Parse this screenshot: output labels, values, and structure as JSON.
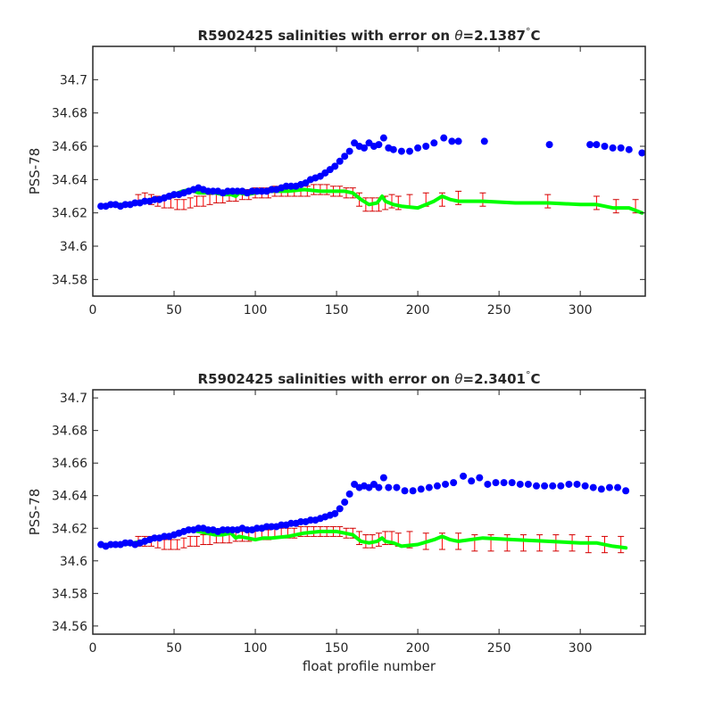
{
  "chart_data": [
    {
      "type": "scatter",
      "title": "R5902425 salinities with error on θ=2.1387°C",
      "title_parts": {
        "prefix": "R5902425 salinities with error on ",
        "symbol": "θ",
        "suffix": "=2.1387",
        "unit": "C"
      },
      "xlabel": "",
      "ylabel": "PSS-78",
      "xlim": [
        0,
        340
      ],
      "ylim": [
        34.57,
        34.72
      ],
      "xticks": [
        0,
        50,
        100,
        150,
        200,
        250,
        300
      ],
      "yticks": [
        34.58,
        34.6,
        34.62,
        34.64,
        34.66,
        34.68,
        34.7
      ],
      "ytick_labels": [
        "34.58",
        "34.6",
        "34.62",
        "34.64",
        "34.66",
        "34.68",
        "34.7"
      ],
      "grid": false,
      "colors": {
        "float": "#0000ff",
        "mapped": "#00ff00",
        "error": "#ff0000",
        "error_cap": "#cc0000"
      },
      "series": [
        {
          "style": "blue-dots",
          "x": [
            5,
            8,
            11,
            14,
            17,
            20,
            23,
            26,
            29,
            32,
            35,
            38,
            41,
            44,
            47,
            50,
            53,
            56,
            59,
            62,
            65,
            68,
            71,
            74,
            77,
            80,
            83,
            86,
            89,
            92,
            95,
            98,
            101,
            104,
            107,
            110,
            113,
            116,
            119,
            122,
            125,
            128,
            131,
            134,
            137,
            140,
            143,
            146,
            149,
            152,
            155,
            158,
            161,
            164,
            167,
            170,
            173,
            176,
            179,
            182,
            185,
            190,
            195,
            200,
            205,
            210,
            216,
            221,
            225,
            241,
            281,
            306,
            310,
            315,
            320,
            325,
            330,
            338
          ],
          "y": [
            34.624,
            34.624,
            34.625,
            34.625,
            34.624,
            34.625,
            34.625,
            34.626,
            34.626,
            34.627,
            34.627,
            34.628,
            34.628,
            34.629,
            34.63,
            34.631,
            34.631,
            34.632,
            34.633,
            34.634,
            34.635,
            34.634,
            34.633,
            34.633,
            34.633,
            34.632,
            34.633,
            34.633,
            34.633,
            34.633,
            34.632,
            34.633,
            34.633,
            34.633,
            34.633,
            34.634,
            34.634,
            34.635,
            34.636,
            34.636,
            34.636,
            34.637,
            34.638,
            34.64,
            34.641,
            34.642,
            34.644,
            34.646,
            34.648,
            34.651,
            34.654,
            34.657,
            34.662,
            34.66,
            34.659,
            34.662,
            34.66,
            34.661,
            34.665,
            34.659,
            34.658,
            34.657,
            34.657,
            34.659,
            34.66,
            34.662,
            34.665,
            34.663,
            34.663,
            34.663,
            34.661,
            34.661,
            34.661,
            34.66,
            34.659,
            34.659,
            34.658,
            34.656
          ]
        },
        {
          "style": "green-line",
          "x": [
            5,
            10,
            20,
            30,
            40,
            50,
            55,
            60,
            65,
            70,
            75,
            80,
            85,
            88,
            90,
            95,
            100,
            110,
            120,
            130,
            140,
            150,
            155,
            160,
            165,
            170,
            175,
            178,
            180,
            185,
            190,
            200,
            210,
            215,
            220,
            225,
            240,
            260,
            280,
            300,
            310,
            320,
            330,
            338
          ],
          "y": [
            34.624,
            34.625,
            34.625,
            34.627,
            34.628,
            34.631,
            34.633,
            34.634,
            34.632,
            34.632,
            34.632,
            34.631,
            34.631,
            34.63,
            34.632,
            34.631,
            34.632,
            34.633,
            34.633,
            34.634,
            34.633,
            34.633,
            34.633,
            34.632,
            34.628,
            34.625,
            34.626,
            34.63,
            34.627,
            34.625,
            34.624,
            34.623,
            34.627,
            34.63,
            34.628,
            34.627,
            34.627,
            34.626,
            34.626,
            34.625,
            34.625,
            34.623,
            34.623,
            34.62
          ]
        },
        {
          "style": "red-errorbars",
          "x": [
            28,
            32,
            36,
            40,
            44,
            48,
            52,
            56,
            60,
            64,
            68,
            72,
            76,
            80,
            84,
            88,
            92,
            96,
            100,
            104,
            108,
            112,
            116,
            120,
            124,
            128,
            132,
            136,
            140,
            144,
            148,
            152,
            156,
            160,
            164,
            168,
            172,
            176,
            180,
            184,
            188,
            195,
            205,
            215,
            225,
            240,
            280,
            310,
            322,
            334
          ],
          "y": [
            34.628,
            34.629,
            34.628,
            34.627,
            34.626,
            34.626,
            34.625,
            34.625,
            34.626,
            34.627,
            34.627,
            34.628,
            34.629,
            34.629,
            34.63,
            34.63,
            34.631,
            34.631,
            34.632,
            34.632,
            34.632,
            34.633,
            34.633,
            34.633,
            34.633,
            34.633,
            34.633,
            34.634,
            34.634,
            34.634,
            34.633,
            34.633,
            34.632,
            34.632,
            34.628,
            34.625,
            34.625,
            34.625,
            34.626,
            34.627,
            34.626,
            34.627,
            34.628,
            34.628,
            34.629,
            34.628,
            34.627,
            34.626,
            34.624,
            34.624
          ],
          "err": [
            0.003,
            0.003,
            0.003,
            0.003,
            0.003,
            0.003,
            0.003,
            0.003,
            0.003,
            0.003,
            0.003,
            0.003,
            0.003,
            0.003,
            0.003,
            0.003,
            0.003,
            0.003,
            0.003,
            0.003,
            0.003,
            0.003,
            0.003,
            0.003,
            0.003,
            0.003,
            0.003,
            0.003,
            0.003,
            0.003,
            0.003,
            0.003,
            0.003,
            0.003,
            0.004,
            0.004,
            0.004,
            0.004,
            0.004,
            0.004,
            0.004,
            0.004,
            0.004,
            0.004,
            0.004,
            0.004,
            0.004,
            0.004,
            0.004,
            0.004
          ]
        }
      ]
    },
    {
      "type": "scatter",
      "title": "R5902425 salinities with error on θ=2.3401°C",
      "title_parts": {
        "prefix": "R5902425 salinities with error on ",
        "symbol": "θ",
        "suffix": "=2.3401",
        "unit": "C"
      },
      "xlabel": "float profile number",
      "ylabel": "PSS-78",
      "xlim": [
        0,
        340
      ],
      "ylim": [
        34.555,
        34.705
      ],
      "xticks": [
        0,
        50,
        100,
        150,
        200,
        250,
        300
      ],
      "yticks": [
        34.56,
        34.58,
        34.6,
        34.62,
        34.64,
        34.66,
        34.68,
        34.7
      ],
      "ytick_labels": [
        "34.56",
        "34.58",
        "34.6",
        "34.62",
        "34.64",
        "34.66",
        "34.68",
        "34.7"
      ],
      "grid": false,
      "colors": {
        "float": "#0000ff",
        "mapped": "#00ff00",
        "error": "#ff0000",
        "error_cap": "#cc0000"
      },
      "series": [
        {
          "style": "blue-dots",
          "x": [
            5,
            8,
            11,
            14,
            17,
            20,
            23,
            26,
            29,
            32,
            35,
            38,
            41,
            44,
            47,
            50,
            53,
            56,
            59,
            62,
            65,
            68,
            71,
            74,
            77,
            80,
            83,
            86,
            89,
            92,
            95,
            98,
            101,
            104,
            107,
            110,
            113,
            116,
            119,
            122,
            125,
            128,
            131,
            134,
            137,
            140,
            143,
            146,
            149,
            152,
            155,
            158,
            161,
            164,
            167,
            170,
            173,
            176,
            179,
            182,
            187,
            192,
            197,
            202,
            207,
            212,
            217,
            222,
            228,
            233,
            238,
            243,
            248,
            253,
            258,
            263,
            268,
            273,
            278,
            283,
            288,
            293,
            298,
            303,
            308,
            313,
            318,
            323,
            328
          ],
          "y": [
            34.61,
            34.609,
            34.61,
            34.61,
            34.61,
            34.611,
            34.611,
            34.61,
            34.611,
            34.612,
            34.613,
            34.614,
            34.614,
            34.615,
            34.615,
            34.616,
            34.617,
            34.618,
            34.619,
            34.619,
            34.62,
            34.62,
            34.619,
            34.619,
            34.618,
            34.619,
            34.619,
            34.619,
            34.619,
            34.62,
            34.619,
            34.619,
            34.62,
            34.62,
            34.621,
            34.621,
            34.621,
            34.622,
            34.622,
            34.623,
            34.623,
            34.624,
            34.624,
            34.625,
            34.625,
            34.626,
            34.627,
            34.628,
            34.629,
            34.632,
            34.636,
            34.641,
            34.647,
            34.645,
            34.646,
            34.645,
            34.647,
            34.645,
            34.651,
            34.645,
            34.645,
            34.643,
            34.643,
            34.644,
            34.645,
            34.646,
            34.647,
            34.648,
            34.652,
            34.649,
            34.651,
            34.647,
            34.648,
            34.648,
            34.648,
            34.647,
            34.647,
            34.646,
            34.646,
            34.646,
            34.646,
            34.647,
            34.647,
            34.646,
            34.645,
            34.644,
            34.645,
            34.645,
            34.643
          ]
        },
        {
          "style": "green-line",
          "x": [
            5,
            10,
            20,
            30,
            40,
            50,
            55,
            60,
            65,
            70,
            75,
            80,
            85,
            88,
            90,
            95,
            100,
            105,
            110,
            120,
            130,
            140,
            150,
            155,
            160,
            165,
            170,
            175,
            178,
            180,
            185,
            190,
            200,
            210,
            215,
            220,
            225,
            240,
            260,
            280,
            300,
            310,
            320,
            328
          ],
          "y": [
            34.61,
            34.61,
            34.61,
            34.612,
            34.614,
            34.616,
            34.618,
            34.619,
            34.618,
            34.617,
            34.616,
            34.616,
            34.617,
            34.614,
            34.615,
            34.614,
            34.613,
            34.614,
            34.614,
            34.615,
            34.617,
            34.618,
            34.618,
            34.617,
            34.616,
            34.612,
            34.611,
            34.612,
            34.614,
            34.612,
            34.611,
            34.609,
            34.61,
            34.613,
            34.615,
            34.613,
            34.612,
            34.614,
            34.613,
            34.612,
            34.611,
            34.611,
            34.609,
            34.608
          ]
        },
        {
          "style": "red-errorbars",
          "x": [
            28,
            32,
            36,
            40,
            44,
            48,
            52,
            56,
            60,
            64,
            68,
            72,
            76,
            80,
            84,
            88,
            92,
            96,
            100,
            104,
            108,
            112,
            116,
            120,
            124,
            128,
            132,
            136,
            140,
            144,
            148,
            152,
            156,
            160,
            164,
            168,
            172,
            176,
            180,
            184,
            188,
            195,
            205,
            215,
            225,
            235,
            245,
            255,
            265,
            275,
            285,
            295,
            305,
            315,
            325
          ],
          "y": [
            34.612,
            34.612,
            34.612,
            34.611,
            34.61,
            34.61,
            34.61,
            34.611,
            34.612,
            34.612,
            34.613,
            34.613,
            34.614,
            34.614,
            34.614,
            34.615,
            34.615,
            34.615,
            34.616,
            34.616,
            34.616,
            34.617,
            34.617,
            34.617,
            34.617,
            34.618,
            34.618,
            34.618,
            34.618,
            34.618,
            34.618,
            34.618,
            34.617,
            34.617,
            34.614,
            34.612,
            34.612,
            34.613,
            34.614,
            34.614,
            34.613,
            34.613,
            34.612,
            34.612,
            34.612,
            34.611,
            34.611,
            34.611,
            34.611,
            34.611,
            34.611,
            34.611,
            34.61,
            34.61,
            34.61
          ],
          "err": [
            0.003,
            0.003,
            0.003,
            0.003,
            0.003,
            0.003,
            0.003,
            0.003,
            0.003,
            0.003,
            0.003,
            0.003,
            0.003,
            0.003,
            0.003,
            0.003,
            0.003,
            0.003,
            0.003,
            0.003,
            0.003,
            0.003,
            0.003,
            0.003,
            0.003,
            0.003,
            0.003,
            0.003,
            0.003,
            0.003,
            0.003,
            0.003,
            0.003,
            0.003,
            0.004,
            0.004,
            0.004,
            0.004,
            0.004,
            0.004,
            0.004,
            0.005,
            0.005,
            0.005,
            0.005,
            0.005,
            0.005,
            0.005,
            0.005,
            0.005,
            0.005,
            0.005,
            0.005,
            0.005,
            0.005
          ]
        }
      ]
    }
  ]
}
